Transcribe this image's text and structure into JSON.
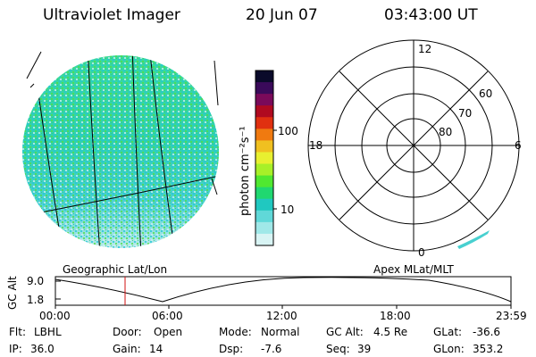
{
  "header": {
    "title": "Ultraviolet Imager",
    "date": "20 Jun 07",
    "time": "03:43:00 UT"
  },
  "colorbar": {
    "label": "photon cm⁻²s⁻¹",
    "ticks": [
      "100",
      "10"
    ],
    "colors": [
      "#0a0a2a",
      "#3a0a5a",
      "#7a0a5a",
      "#b00a20",
      "#e03010",
      "#f07a10",
      "#f0c020",
      "#e8f030",
      "#a8f028",
      "#50e830",
      "#20d870",
      "#20c8c0",
      "#60d8d8",
      "#a0e8e8",
      "#d8f4f4"
    ]
  },
  "polar_grid": {
    "mlt_labels": [
      "12",
      "18",
      "6",
      "0"
    ],
    "lat_labels": [
      "60",
      "70",
      "80"
    ]
  },
  "map_labels": {
    "left": "Geographic Lat/Lon",
    "right": "Apex MLat/MLT"
  },
  "timeline": {
    "ylabel": "GC Alt",
    "yticks": [
      "9.0",
      "1.8"
    ],
    "xticks": [
      "00:00",
      "06:00",
      "12:00",
      "18:00",
      "23:59"
    ],
    "marker_time": "03:43"
  },
  "info": {
    "flt_label": "Flt:",
    "flt_value": "LBHL",
    "ip_label": "IP:",
    "ip_value": "36.0",
    "door_label": "Door:",
    "door_value": "Open",
    "gain_label": "Gain:",
    "gain_value": "14",
    "mode_label": "Mode:",
    "mode_value": "Normal",
    "dsp_label": "Dsp:",
    "dsp_value": "-7.6",
    "gcalt_label": "GC Alt:",
    "gcalt_value": "4.5 Re",
    "seq_label": "Seq:",
    "seq_value": "39",
    "glat_label": "GLat:",
    "glat_value": "-36.6",
    "glon_label": "GLon:",
    "glon_value": "353.2"
  }
}
